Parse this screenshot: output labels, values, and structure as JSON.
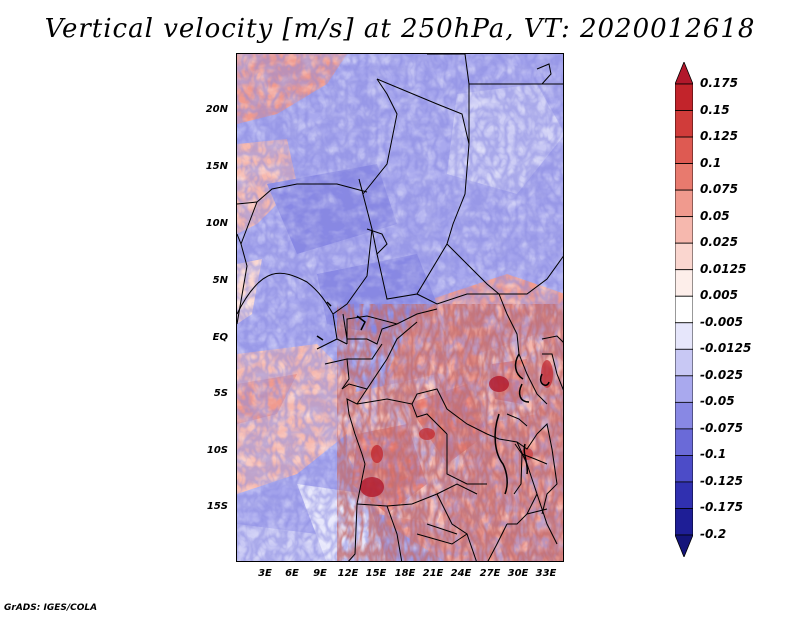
{
  "title": "Vertical velocity [m/s] at 250hPa, VT: 2020012618",
  "latitude_labels": [
    "20N",
    "15N",
    "10N",
    "5N",
    "EQ",
    "5S",
    "10S",
    "15S"
  ],
  "longitude_labels": [
    "3E",
    "6E",
    "9E",
    "12E",
    "15E",
    "18E",
    "21E",
    "24E",
    "27E",
    "30E",
    "33E"
  ],
  "colorbar": {
    "levels": [
      "0.175",
      "0.15",
      "0.125",
      "0.1",
      "0.075",
      "0.05",
      "0.025",
      "0.0125",
      "0.005",
      "-0.005",
      "-0.0125",
      "-0.025",
      "-0.05",
      "-0.075",
      "-0.1",
      "-0.125",
      "-0.175",
      "-0.2"
    ],
    "colors": [
      "#b2182b",
      "#c2242b",
      "#d03c3a",
      "#de5a52",
      "#e87a6e",
      "#f09a8e",
      "#f6b8ae",
      "#fad6cf",
      "#fdeeea",
      "#ffffff",
      "#e6e6fb",
      "#c8c8f4",
      "#a9a9ee",
      "#8888e4",
      "#6a6ad8",
      "#4c4cc8",
      "#3030b0",
      "#1e1e96",
      "#14147a"
    ]
  },
  "credit": "GrADS: IGES/COLA"
}
